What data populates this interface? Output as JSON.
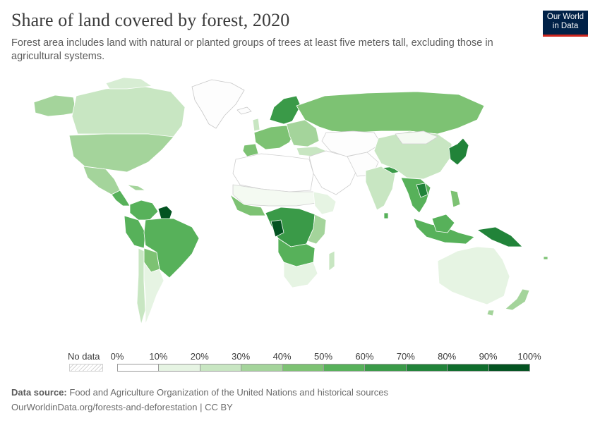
{
  "header": {
    "title": "Share of land covered by forest, 2020",
    "subtitle": "Forest area includes land with natural or planted groups of trees at least five meters tall, excluding those in agricultural systems."
  },
  "logo": {
    "line1": "Our World",
    "line2": "in Data",
    "bg_color": "#002147",
    "accent_color": "#ce261e"
  },
  "legend": {
    "no_data_label": "No data",
    "ticks": [
      "0%",
      "10%",
      "20%",
      "30%",
      "40%",
      "50%",
      "60%",
      "70%",
      "80%",
      "90%",
      "100%"
    ],
    "colors": [
      "#ffffff",
      "#e6f4e3",
      "#c8e6c2",
      "#a4d49b",
      "#7dc273",
      "#57b15a",
      "#3a9a48",
      "#218339",
      "#0f6d2c",
      "#035321"
    ]
  },
  "footer": {
    "source_label": "Data source:",
    "source_text": "Food and Agriculture Organization of the United Nations and historical sources",
    "url_text": "OurWorldinData.org/forests-and-deforestation | CC BY"
  }
}
